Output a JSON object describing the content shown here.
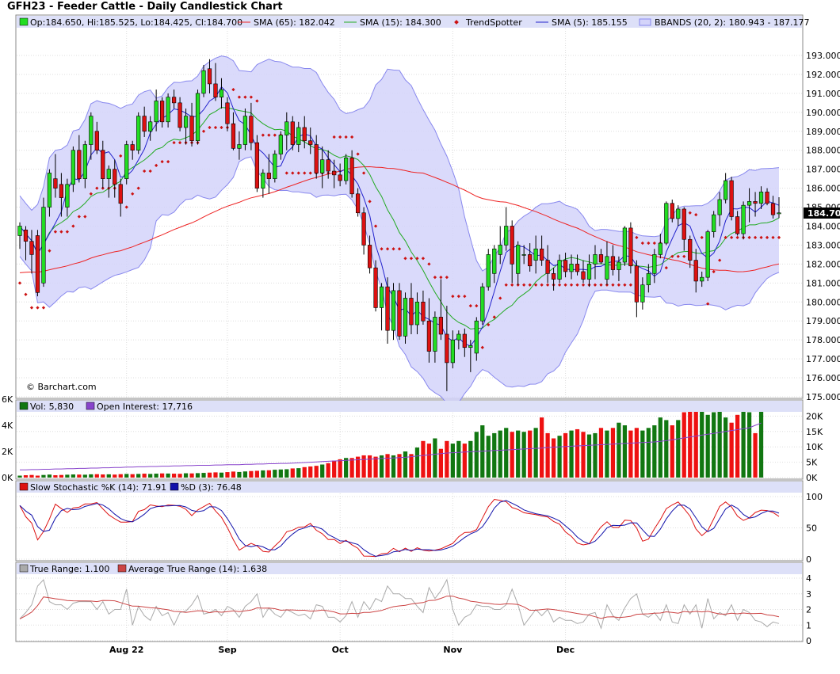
{
  "title": "GFH23 - Feeder Cattle - Daily Candlestick Chart",
  "watermark": "© Barchart.com",
  "colors": {
    "up": "#22dd22",
    "down": "#dd1111",
    "sma65": "#ee2222",
    "sma15": "#22aa22",
    "sma5": "#2222cc",
    "bband_fill": "#d4d4fa",
    "bband_line": "#8888ee",
    "trendspotter": "#cc1111",
    "vol_up": "#117711",
    "vol_down": "#ee1111",
    "oi": "#8844cc",
    "stoch_k": "#dd1111",
    "stoch_d": "#1111aa",
    "true_range": "#aaaaaa",
    "atr": "#cc4444",
    "panel_bg": "#ffffff",
    "legend_bg": "#dde0f8"
  },
  "price_legend": {
    "ohlc": "Op:184.650, Hi:185.525, Lo:184.425, Cl:184.700",
    "sma65": "SMA (65): 182.042",
    "sma15": "SMA (15): 184.300",
    "trendspotter": "TrendSpotter",
    "sma5": "SMA (5): 185.155",
    "bbands": "BBANDS (20, 2): 180.943 - 187.177"
  },
  "volume_legend": {
    "vol": "Vol: 5,830",
    "oi": "Open Interest: 17,716"
  },
  "stoch_legend": {
    "k": "Slow Stochastic %K (14): 71.91",
    "d": "%D (3): 76.48"
  },
  "atr_legend": {
    "tr": "True Range: 1.100",
    "atr": "Average True Range (14): 1.638"
  },
  "last_price_label": "184.700",
  "chart_data": [
    {
      "type": "candlestick",
      "title": "GFH23 - Feeder Cattle - Daily Candlestick Chart",
      "x_labels": [
        "Aug 22",
        "Sep",
        "Oct",
        "Nov",
        "Dec"
      ],
      "x_label_index": [
        18,
        35,
        54,
        73,
        92
      ],
      "ylim": [
        175,
        193.5
      ],
      "y_ticks": [
        "193.000",
        "192.000",
        "191.000",
        "190.000",
        "189.000",
        "188.000",
        "187.000",
        "186.000",
        "185.000",
        "184.000",
        "183.000",
        "182.000",
        "181.000",
        "180.000",
        "179.000",
        "178.000",
        "177.000",
        "176.000",
        "175.000"
      ],
      "y_tick_values": [
        193,
        192,
        191,
        190,
        189,
        188,
        187,
        186,
        185,
        184,
        183,
        182,
        181,
        180,
        179,
        178,
        177,
        176,
        175
      ],
      "ohlc": [
        [
          183.5,
          184.2,
          182.8,
          184.0
        ],
        [
          183.8,
          184.0,
          182.2,
          183.2
        ],
        [
          183.2,
          183.8,
          181.5,
          182.5
        ],
        [
          183.5,
          183.8,
          180.3,
          180.5
        ],
        [
          181.0,
          185.5,
          180.8,
          185.0
        ],
        [
          185.0,
          187.0,
          184.5,
          186.8
        ],
        [
          186.5,
          187.8,
          185.5,
          186.0
        ],
        [
          186.2,
          186.8,
          184.5,
          185.5
        ],
        [
          185.0,
          186.5,
          184.5,
          186.2
        ],
        [
          186.2,
          188.2,
          185.8,
          188.0
        ],
        [
          188.0,
          188.8,
          186.3,
          186.5
        ],
        [
          186.5,
          188.5,
          186.0,
          188.3
        ],
        [
          188.3,
          190.0,
          187.5,
          189.8
        ],
        [
          189.0,
          189.5,
          187.8,
          188.0
        ],
        [
          188.0,
          188.5,
          186.0,
          186.5
        ],
        [
          186.5,
          187.2,
          185.5,
          187.0
        ],
        [
          187.0,
          187.5,
          185.5,
          186.2
        ],
        [
          186.2,
          186.5,
          184.5,
          185.2
        ],
        [
          186.5,
          188.5,
          186.2,
          188.3
        ],
        [
          188.3,
          188.5,
          187.5,
          188.0
        ],
        [
          188.0,
          190.0,
          187.8,
          189.8
        ],
        [
          189.8,
          190.3,
          188.7,
          189.0
        ],
        [
          189.0,
          189.8,
          188.5,
          189.5
        ],
        [
          189.5,
          191.2,
          189.0,
          190.6
        ],
        [
          190.6,
          190.8,
          189.2,
          189.5
        ],
        [
          189.5,
          191.0,
          189.2,
          190.8
        ],
        [
          190.8,
          191.2,
          190.2,
          190.5
        ],
        [
          190.5,
          190.8,
          189.0,
          189.2
        ],
        [
          189.2,
          190.2,
          188.3,
          189.8
        ],
        [
          189.8,
          190.5,
          188.2,
          188.5
        ],
        [
          188.5,
          191.2,
          188.3,
          191.0
        ],
        [
          191.0,
          192.5,
          190.8,
          192.2
        ],
        [
          192.3,
          192.8,
          191.0,
          191.5
        ],
        [
          191.5,
          192.6,
          190.6,
          190.8
        ],
        [
          190.8,
          191.8,
          190.2,
          191.2
        ],
        [
          190.5,
          190.8,
          189.0,
          189.4
        ],
        [
          189.4,
          190.0,
          188.0,
          188.1
        ],
        [
          188.1,
          189.0,
          187.5,
          188.3
        ],
        [
          188.3,
          190.2,
          188.0,
          189.8
        ],
        [
          189.8,
          190.5,
          188.0,
          188.4
        ],
        [
          188.4,
          188.8,
          185.8,
          186.0
        ],
        [
          186.0,
          187.0,
          185.5,
          186.8
        ],
        [
          186.8,
          187.8,
          185.7,
          186.5
        ],
        [
          186.5,
          188.0,
          186.3,
          187.8
        ],
        [
          187.8,
          189.0,
          187.5,
          188.8
        ],
        [
          188.8,
          190.0,
          188.0,
          189.5
        ],
        [
          189.5,
          189.8,
          188.0,
          188.3
        ],
        [
          188.3,
          189.5,
          187.9,
          189.2
        ],
        [
          189.2,
          189.8,
          188.1,
          188.5
        ],
        [
          188.5,
          189.2,
          187.8,
          188.3
        ],
        [
          188.3,
          188.8,
          186.5,
          186.8
        ],
        [
          186.8,
          188.2,
          186.0,
          187.5
        ],
        [
          187.5,
          188.0,
          186.5,
          186.9
        ],
        [
          186.9,
          187.5,
          186.0,
          186.7
        ],
        [
          186.7,
          187.3,
          186.1,
          186.4
        ],
        [
          186.4,
          187.8,
          186.2,
          187.6
        ],
        [
          187.6,
          188.0,
          185.5,
          185.7
        ],
        [
          185.7,
          186.0,
          184.5,
          184.7
        ],
        [
          184.7,
          185.0,
          182.5,
          183.0
        ],
        [
          183.0,
          183.5,
          181.5,
          181.8
        ],
        [
          181.8,
          182.2,
          179.5,
          179.7
        ],
        [
          179.7,
          181.0,
          178.5,
          180.8
        ],
        [
          180.8,
          181.3,
          177.8,
          178.5
        ],
        [
          178.5,
          181.0,
          178.0,
          180.6
        ],
        [
          180.6,
          181.0,
          178.0,
          178.2
        ],
        [
          178.2,
          180.5,
          177.8,
          180.2
        ],
        [
          180.2,
          181.0,
          178.3,
          178.8
        ],
        [
          178.8,
          180.5,
          178.3,
          180.0
        ],
        [
          180.0,
          180.6,
          178.8,
          179.0
        ],
        [
          179.0,
          180.2,
          176.8,
          177.4
        ],
        [
          177.4,
          179.5,
          176.8,
          179.2
        ],
        [
          179.2,
          181.2,
          178.0,
          178.3
        ],
        [
          178.3,
          179.8,
          175.3,
          176.8
        ],
        [
          176.8,
          178.5,
          176.5,
          178.0
        ],
        [
          178.0,
          178.5,
          177.5,
          178.3
        ],
        [
          178.3,
          178.6,
          177.1,
          177.6
        ],
        [
          177.6,
          178.0,
          176.3,
          177.7
        ],
        [
          177.3,
          179.2,
          176.9,
          179.0
        ],
        [
          179.0,
          181.0,
          178.8,
          180.8
        ],
        [
          180.8,
          182.8,
          180.6,
          182.5
        ],
        [
          181.5,
          183.0,
          181.0,
          182.8
        ],
        [
          182.5,
          184.0,
          182.0,
          183.0
        ],
        [
          183.0,
          185.0,
          182.7,
          184.0
        ],
        [
          184.0,
          184.3,
          181.0,
          182.0
        ],
        [
          181.5,
          183.2,
          180.9,
          183.0
        ],
        [
          182.5,
          183.0,
          182.0,
          182.5
        ],
        [
          182.5,
          183.1,
          181.6,
          181.9
        ],
        [
          182.2,
          183.5,
          181.5,
          182.8
        ],
        [
          182.8,
          183.5,
          181.9,
          182.2
        ],
        [
          182.2,
          183.0,
          181.0,
          181.5
        ],
        [
          181.5,
          181.8,
          180.6,
          181.2
        ],
        [
          181.2,
          182.5,
          181.0,
          182.2
        ],
        [
          182.2,
          182.6,
          181.3,
          181.6
        ],
        [
          181.6,
          182.5,
          181.2,
          182.0
        ],
        [
          182.0,
          182.5,
          181.4,
          181.6
        ],
        [
          181.6,
          182.2,
          181.0,
          181.2
        ],
        [
          181.2,
          182.5,
          180.8,
          182.0
        ],
        [
          182.0,
          183.0,
          181.2,
          182.5
        ],
        [
          182.5,
          182.8,
          182.0,
          182.1
        ],
        [
          181.2,
          183.2,
          180.9,
          182.4
        ],
        [
          182.4,
          183.0,
          181.4,
          181.7
        ],
        [
          181.7,
          182.4,
          181.1,
          182.1
        ],
        [
          182.1,
          184.0,
          181.9,
          183.9
        ],
        [
          183.9,
          184.2,
          181.5,
          181.9
        ],
        [
          181.9,
          182.2,
          179.2,
          180.0
        ],
        [
          180.0,
          181.3,
          179.6,
          180.9
        ],
        [
          180.9,
          182.0,
          180.5,
          181.5
        ],
        [
          181.5,
          182.8,
          181.0,
          182.5
        ],
        [
          182.5,
          183.6,
          182.3,
          183.1
        ],
        [
          183.1,
          185.3,
          183.0,
          185.2
        ],
        [
          185.2,
          185.4,
          184.2,
          184.4
        ],
        [
          184.4,
          185.1,
          184.0,
          184.9
        ],
        [
          184.9,
          185.0,
          182.7,
          183.3
        ],
        [
          183.3,
          183.5,
          181.8,
          182.2
        ],
        [
          182.2,
          182.8,
          180.5,
          181.1
        ],
        [
          181.1,
          181.6,
          180.8,
          181.3
        ],
        [
          181.3,
          183.8,
          181.1,
          183.7
        ],
        [
          183.7,
          184.8,
          183.4,
          184.6
        ],
        [
          184.6,
          185.8,
          184.0,
          185.4
        ],
        [
          185.4,
          186.8,
          185.2,
          186.4
        ],
        [
          186.4,
          186.6,
          184.3,
          184.5
        ],
        [
          184.5,
          184.8,
          183.5,
          183.6
        ],
        [
          183.6,
          185.3,
          183.3,
          185.1
        ],
        [
          185.1,
          186.0,
          184.2,
          185.3
        ],
        [
          185.3,
          185.8,
          184.5,
          185.2
        ],
        [
          185.2,
          186.1,
          184.9,
          185.8
        ],
        [
          185.8,
          186.0,
          185.1,
          185.2
        ],
        [
          185.2,
          185.6,
          184.4,
          184.6
        ],
        [
          184.65,
          185.525,
          184.425,
          184.7
        ]
      ]
    },
    {
      "type": "bar",
      "title": "Volume",
      "ylim": [
        0,
        6000
      ],
      "left_ticks": [
        "6K",
        "4K",
        "2K",
        "0K"
      ],
      "left_tick_values": [
        6000,
        4000,
        2000,
        0
      ],
      "right_ticks": [
        "20K",
        "15K",
        "10K",
        "5K",
        "0K"
      ],
      "right_tick_values": [
        20000,
        15000,
        10000,
        5000,
        0
      ],
      "volume": [
        150,
        180,
        200,
        150,
        200,
        230,
        180,
        200,
        220,
        240,
        230,
        220,
        250,
        260,
        240,
        250,
        230,
        260,
        280,
        260,
        280,
        300,
        280,
        300,
        320,
        310,
        300,
        290,
        330,
        320,
        340,
        360,
        380,
        400,
        380,
        420,
        460,
        430,
        470,
        500,
        520,
        550,
        560,
        600,
        620,
        640,
        700,
        720,
        800,
        850,
        900,
        1000,
        1100,
        1300,
        1400,
        1500,
        1500,
        1600,
        1700,
        1700,
        1600,
        1700,
        1800,
        1700,
        1800,
        2000,
        1800,
        2300,
        2800,
        2600,
        3000,
        2200,
        2800,
        2600,
        2800,
        2600,
        2800,
        3500,
        4000,
        3200,
        3400,
        3600,
        3800,
        3500,
        3600,
        3500,
        3600,
        3800,
        4600,
        3400,
        3000,
        3200,
        3400,
        3600,
        3700,
        3500,
        3300,
        3400,
        3800,
        3600,
        3800,
        4200,
        4000,
        3600,
        3800,
        3600,
        3800,
        4000,
        4600,
        4400,
        4000,
        4400,
        5000,
        5200,
        5400,
        5600,
        4800,
        5000,
        5200,
        4600,
        4200,
        4800,
        5100,
        5000,
        3400,
        5830
      ],
      "open_interest_k": [
        2.5,
        2.5,
        2.6,
        2.6,
        2.7,
        2.7,
        2.8,
        2.8,
        2.9,
        2.9,
        3.0,
        3.0,
        3.1,
        3.1,
        3.2,
        3.2,
        3.3,
        3.3,
        3.4,
        3.4,
        3.5,
        3.5,
        3.6,
        3.6,
        3.7,
        3.7,
        3.8,
        3.8,
        3.9,
        3.9,
        4.0,
        4.0,
        4.0,
        4.1,
        4.1,
        4.2,
        4.2,
        4.2,
        4.3,
        4.3,
        4.4,
        4.4,
        4.5,
        4.5,
        4.6,
        4.6,
        4.7,
        4.8,
        4.9,
        5.0,
        5.1,
        5.2,
        5.3,
        5.4,
        5.5,
        5.6,
        5.7,
        5.8,
        5.9,
        6.0,
        6.1,
        6.2,
        6.3,
        6.4,
        6.5,
        6.6,
        6.8,
        7.0,
        7.2,
        7.4,
        7.6,
        7.8,
        8.0,
        8.1,
        8.2,
        8.3,
        8.4,
        8.5,
        8.6,
        8.7,
        8.8,
        8.9,
        9.0,
        9.1,
        9.2,
        9.3,
        9.4,
        9.5,
        9.6,
        9.8,
        9.9,
        10.0,
        10.1,
        10.2,
        10.3,
        10.4,
        10.5,
        10.6,
        10.7,
        10.8,
        10.9,
        11.0,
        11.1,
        11.2,
        11.3,
        11.4,
        11.5,
        11.6,
        11.8,
        12.0,
        12.3,
        12.6,
        12.9,
        13.2,
        13.5,
        13.8,
        14.1,
        14.4,
        14.7,
        15.0,
        15.3,
        15.6,
        15.9,
        16.2,
        17.0,
        17.716
      ]
    },
    {
      "type": "line",
      "title": "Slow Stochastic",
      "ylim": [
        0,
        100
      ],
      "ticks": [
        "100",
        "50",
        "0"
      ],
      "tick_values": [
        100,
        50,
        0
      ]
    },
    {
      "type": "line",
      "title": "True Range",
      "ylim": [
        0,
        4
      ],
      "ticks": [
        "4",
        "3",
        "2",
        "1",
        "0"
      ],
      "tick_values": [
        4,
        3,
        2,
        1,
        0
      ]
    }
  ]
}
